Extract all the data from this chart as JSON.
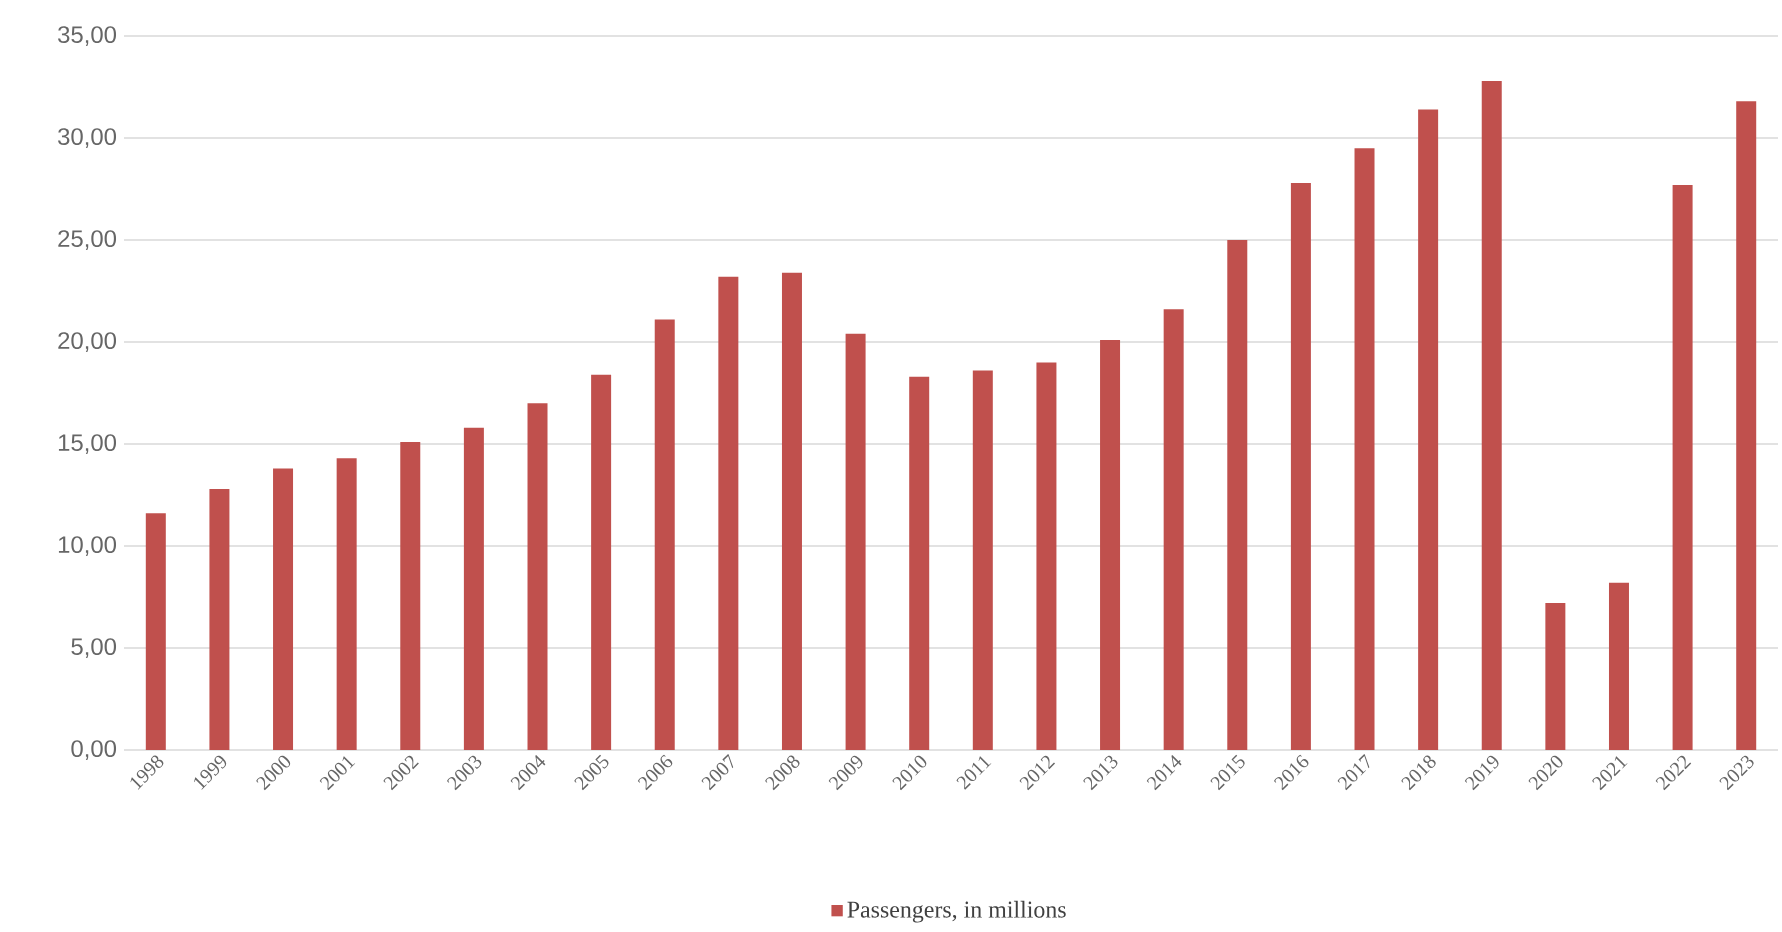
{
  "chart_data": {
    "type": "bar",
    "categories": [
      "1998",
      "1999",
      "2000",
      "2001",
      "2002",
      "2003",
      "2004",
      "2005",
      "2006",
      "2007",
      "2008",
      "2009",
      "2010",
      "2011",
      "2012",
      "2013",
      "2014",
      "2015",
      "2016",
      "2017",
      "2018",
      "2019",
      "2020",
      "2021",
      "2022",
      "2023"
    ],
    "series": [
      {
        "name": "Passengers, in millions",
        "color": "#c0504d",
        "values": [
          11.6,
          12.8,
          13.8,
          14.3,
          15.1,
          15.8,
          17.0,
          18.4,
          21.1,
          23.2,
          23.4,
          20.4,
          18.3,
          18.6,
          19.0,
          20.1,
          21.6,
          25.0,
          27.8,
          29.5,
          31.4,
          32.8,
          7.2,
          8.2,
          27.7,
          31.8
        ]
      }
    ],
    "ylim": [
      0,
      35
    ],
    "yticks": [
      {
        "value": 0,
        "label": "0,00"
      },
      {
        "value": 5,
        "label": "5,00"
      },
      {
        "value": 10,
        "label": "10,00"
      },
      {
        "value": 15,
        "label": "15,00"
      },
      {
        "value": 20,
        "label": "20,00"
      },
      {
        "value": 25,
        "label": "25,00"
      },
      {
        "value": 30,
        "label": "30,00"
      },
      {
        "value": 35,
        "label": "35,00"
      }
    ],
    "grid": "y",
    "legend": "bottom"
  }
}
